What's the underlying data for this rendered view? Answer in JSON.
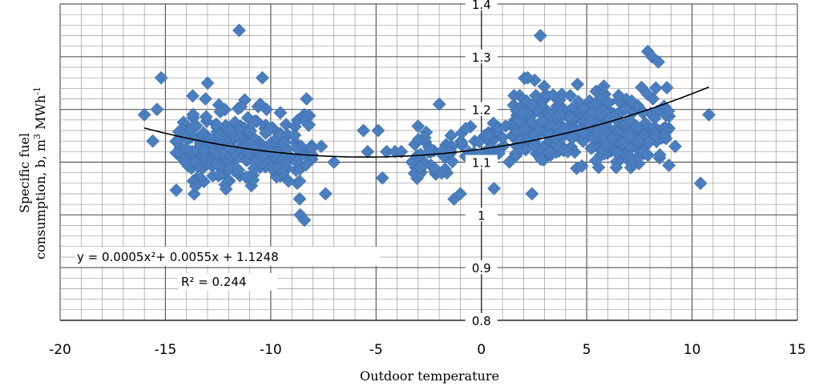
{
  "chart_data": {
    "type": "scatter",
    "xlabel": "Outdoor temperature",
    "ylabel_line1": "Specific fuel",
    "ylabel_line2": "consumption, b, m",
    "ylabel_sup1": "3",
    "ylabel_unit": " MWh",
    "ylabel_sup2": "-1",
    "xlim": [
      -20,
      15
    ],
    "ylim": [
      0.8,
      1.4
    ],
    "x_ticks": [
      "-20",
      "-15",
      "-10",
      "-5",
      "0",
      "5",
      "10",
      "15"
    ],
    "y_ticks": [
      "0.8",
      "0.9",
      "1",
      "1.1",
      "1.2",
      "1.3",
      "1.4"
    ],
    "grid": true,
    "colors": {
      "marker": "#4a7ebf",
      "trendline": "#000000",
      "grid": "#808080"
    },
    "trendline": {
      "type": "polynomial",
      "coefficients": [
        0.0005,
        0.0055,
        1.1248
      ],
      "x_range": [
        -16.0,
        10.8
      ],
      "equation_text": "y = 0.0005x²+ 0.0055x + 1.1248",
      "r2_text": "R² = 0.244"
    },
    "outliers": [
      [
        -11.5,
        1.35
      ],
      [
        2.8,
        1.34
      ],
      [
        -15.2,
        1.26
      ],
      [
        -10.4,
        1.26
      ],
      [
        -13.0,
        1.25
      ],
      [
        7.9,
        1.31
      ],
      [
        8.1,
        1.3
      ],
      [
        8.4,
        1.29
      ],
      [
        -8.6,
        1.0
      ],
      [
        -8.4,
        0.99
      ],
      [
        10.4,
        1.06
      ],
      [
        10.8,
        1.19
      ],
      [
        -7.0,
        1.1
      ],
      [
        -7.6,
        1.13
      ],
      [
        -7.4,
        1.04
      ],
      [
        -5.6,
        1.16
      ],
      [
        -4.9,
        1.16
      ],
      [
        -4.7,
        1.07
      ],
      [
        -5.4,
        1.12
      ],
      [
        -4.5,
        1.12
      ],
      [
        -4.1,
        1.12
      ],
      [
        -3.8,
        1.12
      ],
      [
        -3.3,
        1.1
      ],
      [
        -2.9,
        1.09
      ],
      [
        -1.3,
        1.03
      ],
      [
        -1.0,
        1.04
      ],
      [
        0.6,
        1.05
      ],
      [
        2.2,
        1.26
      ],
      [
        2.4,
        1.04
      ],
      [
        -16.0,
        1.19
      ],
      [
        -15.6,
        1.14
      ],
      [
        -15.4,
        1.2
      ],
      [
        -13.1,
        1.22
      ],
      [
        -8.3,
        1.22
      ],
      [
        -10.5,
        1.21
      ],
      [
        -10.2,
        1.2
      ],
      [
        -8.2,
        1.17
      ],
      [
        -2.0,
        1.21
      ],
      [
        9.2,
        1.13
      ],
      [
        6.4,
        1.09
      ]
    ],
    "clusters": [
      {
        "x_range": [
          -14.5,
          -8.0
        ],
        "y_center": 1.12,
        "y_spread": 0.065,
        "count": 260
      },
      {
        "x_range": [
          -3.2,
          -1.2
        ],
        "y_center": 1.11,
        "y_spread": 0.045,
        "count": 40
      },
      {
        "x_range": [
          -1.0,
          1.5
        ],
        "y_center": 1.14,
        "y_spread": 0.04,
        "count": 40
      },
      {
        "x_range": [
          1.5,
          9.0
        ],
        "y_center": 1.17,
        "y_spread": 0.065,
        "count": 330
      }
    ]
  }
}
